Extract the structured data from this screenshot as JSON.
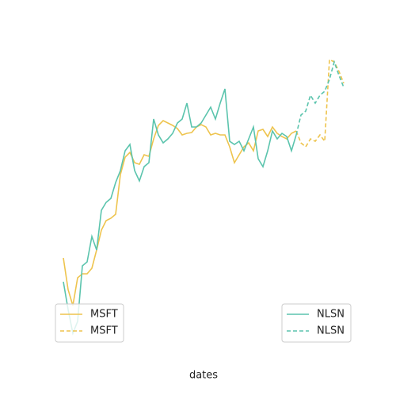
{
  "chart_data": {
    "type": "line",
    "xlabel": "dates",
    "ylim": [
      0,
      380
    ],
    "series": [
      {
        "name": "MSFT",
        "color": "#eec44e",
        "dash": false,
        "legend_loc": "lower left",
        "values": [
          115,
          75,
          55,
          90,
          95,
          95,
          102,
          125,
          150,
          162,
          165,
          170,
          220,
          242,
          248,
          235,
          233,
          245,
          243,
          265,
          282,
          288,
          285,
          282,
          278,
          270,
          272,
          273,
          280,
          283,
          280,
          270,
          272,
          270,
          270,
          255,
          235,
          245,
          255,
          260,
          250,
          275,
          277,
          268,
          280,
          272,
          268,
          265,
          272,
          275,
          null,
          null,
          null,
          null,
          null,
          null,
          null,
          null,
          null,
          null
        ]
      },
      {
        "name": "MSFT",
        "color": "#eec44e",
        "dash": true,
        "legend_loc": "lower left",
        "values": [
          null,
          null,
          null,
          null,
          null,
          null,
          null,
          null,
          null,
          null,
          null,
          null,
          null,
          null,
          null,
          null,
          null,
          null,
          null,
          null,
          null,
          null,
          null,
          null,
          null,
          null,
          null,
          null,
          null,
          null,
          null,
          null,
          null,
          null,
          null,
          null,
          null,
          null,
          null,
          null,
          null,
          null,
          null,
          null,
          null,
          null,
          null,
          null,
          null,
          275,
          260,
          255,
          265,
          262,
          270,
          262,
          365,
          362,
          350,
          335
        ]
      },
      {
        "name": "NLSN",
        "color": "#5bc4ad",
        "dash": false,
        "legend_loc": "lower right",
        "values": [
          85,
          50,
          20,
          35,
          105,
          110,
          142,
          125,
          175,
          185,
          190,
          210,
          225,
          250,
          258,
          225,
          212,
          230,
          235,
          290,
          270,
          260,
          265,
          272,
          285,
          290,
          310,
          280,
          280,
          285,
          295,
          305,
          290,
          310,
          328,
          262,
          258,
          262,
          250,
          265,
          280,
          240,
          230,
          250,
          275,
          265,
          272,
          268,
          250,
          270,
          null,
          null,
          null,
          null,
          null,
          null,
          null,
          null,
          null,
          null
        ]
      },
      {
        "name": "NLSN",
        "color": "#5bc4ad",
        "dash": true,
        "legend_loc": "lower right",
        "values": [
          null,
          null,
          null,
          null,
          null,
          null,
          null,
          null,
          null,
          null,
          null,
          null,
          null,
          null,
          null,
          null,
          null,
          null,
          null,
          null,
          null,
          null,
          null,
          null,
          null,
          null,
          null,
          null,
          null,
          null,
          null,
          null,
          null,
          null,
          null,
          null,
          null,
          null,
          null,
          null,
          null,
          null,
          null,
          null,
          null,
          null,
          null,
          null,
          null,
          270,
          295,
          300,
          320,
          310,
          320,
          325,
          340,
          362,
          345,
          330
        ]
      }
    ]
  }
}
